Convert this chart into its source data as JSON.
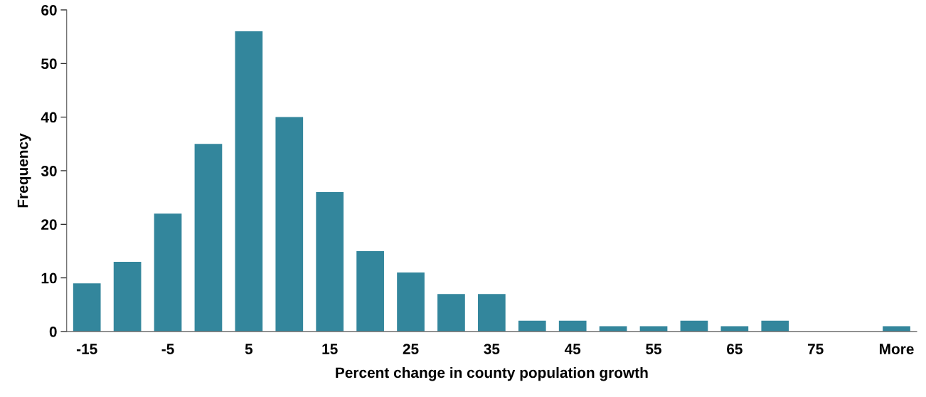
{
  "chart_data": {
    "type": "bar",
    "xlabel": "Percent change in county population growth",
    "ylabel": "Frequency",
    "categories": [
      "-15",
      null,
      "-5",
      null,
      "5",
      null,
      "15",
      null,
      "25",
      null,
      "35",
      null,
      "45",
      null,
      "55",
      null,
      "65",
      null,
      "75",
      null,
      "More"
    ],
    "values": [
      9,
      13,
      22,
      35,
      56,
      40,
      26,
      15,
      11,
      7,
      7,
      2,
      2,
      1,
      1,
      2,
      1,
      2,
      0,
      0,
      1
    ],
    "color": "#33869c",
    "ylim": [
      0,
      60
    ],
    "yticks": [
      0,
      10,
      20,
      30,
      40,
      50,
      60
    ],
    "grid": false,
    "legend": false
  }
}
